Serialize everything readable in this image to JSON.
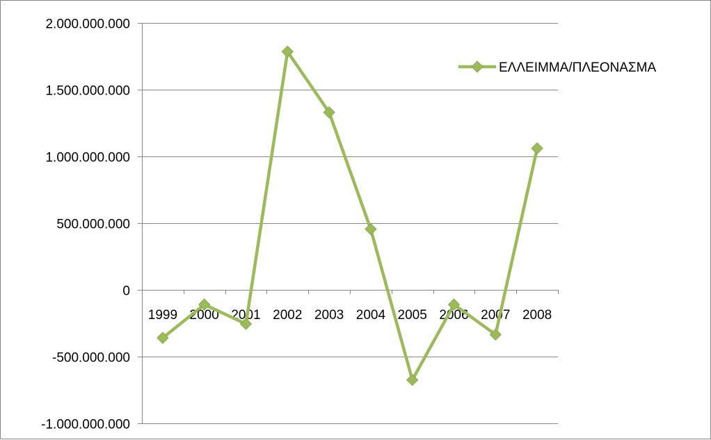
{
  "chart_data": {
    "type": "line",
    "categories": [
      "1999",
      "2000",
      "2001",
      "2002",
      "2003",
      "2004",
      "2005",
      "2006",
      "2007",
      "2008"
    ],
    "series": [
      {
        "name": "ΕΛΛΕΙΜΜΑ/ΠΛΕΟΝΑΣΜΑ",
        "values": [
          -360000000,
          -110000000,
          -255000000,
          1785000000,
          1330000000,
          455000000,
          -675000000,
          -110000000,
          -335000000,
          1060000000
        ],
        "color": "#9bbb59",
        "marker": "diamond"
      }
    ],
    "y_ticks": [
      "2.000.000.000",
      "1.500.000.000",
      "1.000.000.000",
      "500.000.000",
      "0",
      "-500.000.000",
      "-1.000.000.000"
    ],
    "y_tick_values": [
      2000000000,
      1500000000,
      1000000000,
      500000000,
      0,
      -500000000,
      -1000000000
    ],
    "ylim": [
      -1000000000,
      2000000000
    ],
    "grid": true,
    "legend_position": "right",
    "colors": {
      "axis": "#868686",
      "grid": "#868686",
      "text": "#000000",
      "frame": "#868686"
    }
  }
}
